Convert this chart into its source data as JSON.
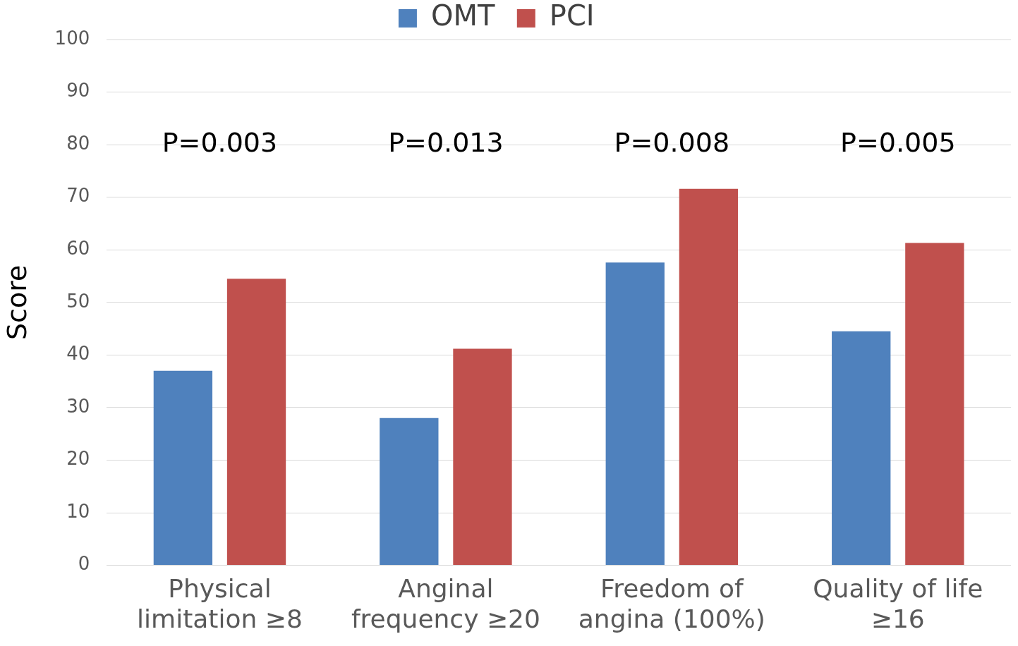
{
  "chart_data": {
    "type": "bar",
    "ylabel": "Score",
    "categories": [
      "Physical limitation ≥8",
      "Anginal frequency ≥20",
      "Freedom of angina (100%)",
      "Quality of life ≥16"
    ],
    "series": [
      {
        "name": "OMT",
        "color": "#4f81bd",
        "values": [
          37,
          28,
          57.6,
          44.5
        ]
      },
      {
        "name": "PCI",
        "color": "#c0504d",
        "values": [
          54.5,
          41.2,
          71.6,
          61.3
        ]
      }
    ],
    "ylim": [
      0,
      100
    ],
    "yticks": [
      0,
      10,
      20,
      30,
      40,
      50,
      60,
      70,
      80,
      90,
      100
    ],
    "grid": "y",
    "legend": "top",
    "annotations": [
      "P=0.003",
      "P=0.013",
      "P=0.008",
      "P=0.005"
    ]
  }
}
